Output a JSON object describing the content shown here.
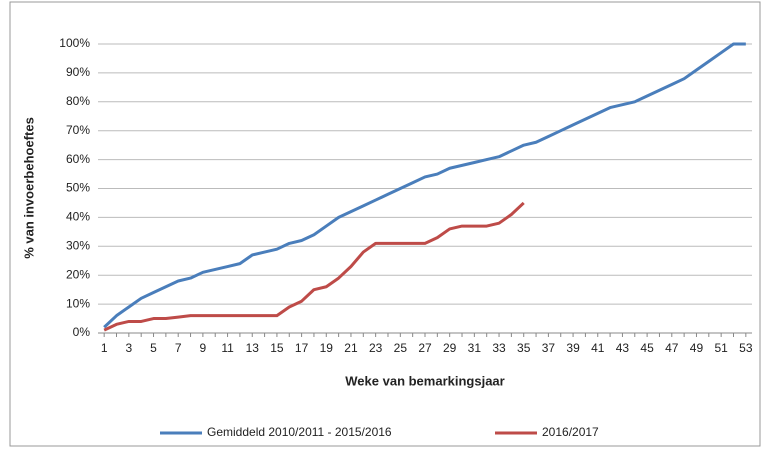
{
  "chart_data": {
    "type": "line",
    "y_label": "% van invoerbehoeftes",
    "x_label": "Weke van bemarkingsjaar",
    "categories": [
      "1",
      null,
      "3",
      null,
      "5",
      null,
      "7",
      null,
      "9",
      null,
      "11",
      null,
      "13",
      null,
      "15",
      null,
      "17",
      null,
      "19",
      null,
      "21",
      null,
      "23",
      null,
      "25",
      null,
      "27",
      null,
      "29",
      null,
      "31",
      null,
      "33",
      null,
      "35",
      null,
      "37",
      null,
      "39",
      null,
      "41",
      null,
      "43",
      null,
      "45",
      null,
      "47",
      null,
      "49",
      null,
      "51",
      null,
      "53"
    ],
    "series": [
      {
        "name": "Gemiddeld 2010/2011 - 2015/2016",
        "color": "#4a7ebb",
        "values": [
          2,
          6,
          9,
          12,
          14,
          16,
          18,
          19,
          21,
          22,
          23,
          24,
          27,
          28,
          29,
          31,
          32,
          34,
          37,
          40,
          42,
          44,
          46,
          48,
          50,
          52,
          54,
          55,
          57,
          58,
          59,
          60,
          61,
          63,
          65,
          66,
          68,
          70,
          72,
          74,
          76,
          78,
          79,
          80,
          82,
          84,
          86,
          88,
          91,
          94,
          97,
          100,
          100
        ]
      },
      {
        "name": "2016/2017",
        "color": "#be4b48",
        "values": [
          1,
          3,
          4,
          4,
          5,
          5,
          5.5,
          6,
          6,
          6,
          6,
          6,
          6,
          6,
          6,
          9,
          11,
          15,
          16,
          19,
          23,
          28,
          31,
          31,
          31,
          31,
          31,
          33,
          36,
          37,
          37,
          37,
          38,
          41,
          45,
          null,
          null,
          null,
          null,
          null,
          null,
          null,
          null,
          null,
          null,
          null,
          null,
          null,
          null,
          null,
          null,
          null,
          null
        ]
      }
    ],
    "ylim": [
      0,
      100
    ],
    "yticks": [
      {
        "value": 0,
        "label": "0%"
      },
      {
        "value": 10,
        "label": "10%"
      },
      {
        "value": 20,
        "label": "20%"
      },
      {
        "value": 30,
        "label": "30%"
      },
      {
        "value": 40,
        "label": "40%"
      },
      {
        "value": 50,
        "label": "50%"
      },
      {
        "value": 60,
        "label": "60%"
      },
      {
        "value": 70,
        "label": "70%"
      },
      {
        "value": 80,
        "label": "80%"
      },
      {
        "value": 90,
        "label": "90%"
      },
      {
        "value": 100,
        "label": "100%"
      }
    ],
    "grid": true,
    "legend": "bottom"
  }
}
